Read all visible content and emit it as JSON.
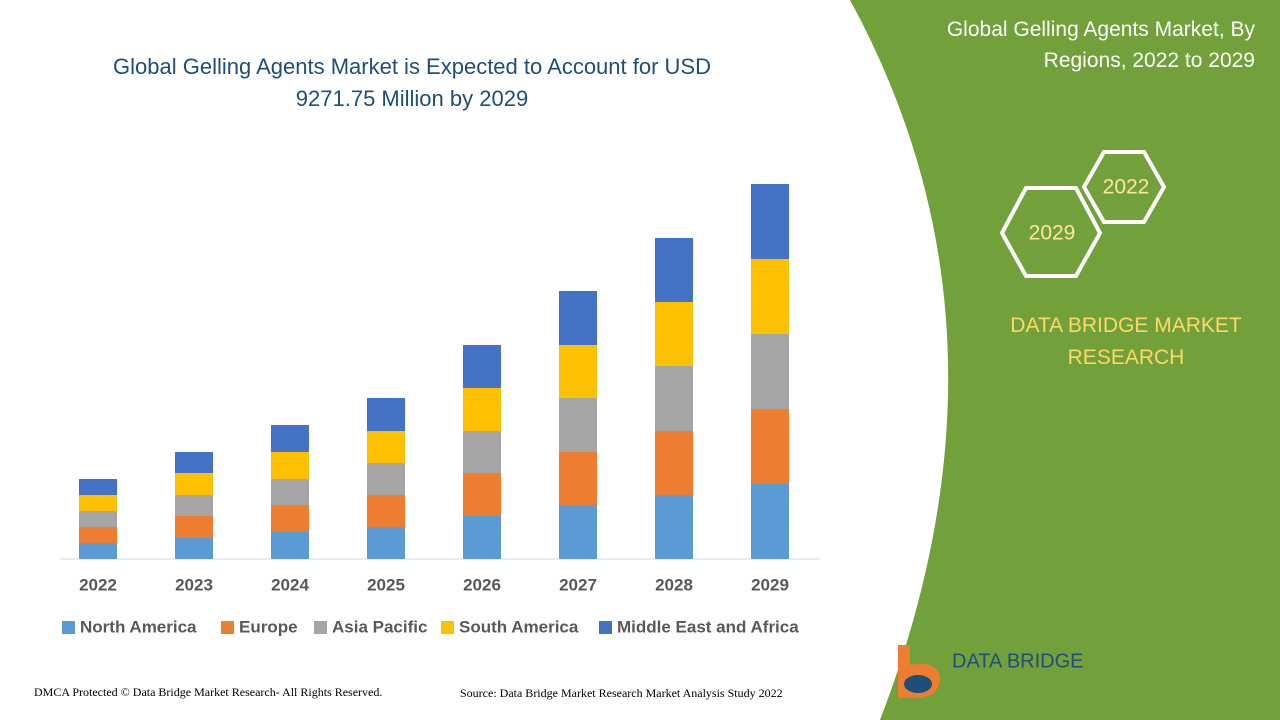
{
  "chart_data": {
    "type": "stacked-bar",
    "title": "Global Gelling Agents Market is Expected to Account for USD 9271.75 Million by 2029",
    "categories": [
      "2022",
      "2023",
      "2024",
      "2025",
      "2026",
      "2027",
      "2028",
      "2029"
    ],
    "series": [
      {
        "name": "North America",
        "color": "#5b9bd5",
        "values": [
          16,
          21,
          27,
          32,
          43,
          54,
          64,
          75
        ]
      },
      {
        "name": "Europe",
        "color": "#ed7d31",
        "values": [
          16,
          22,
          27,
          32,
          43,
          53,
          64,
          75
        ]
      },
      {
        "name": "Asia Pacific",
        "color": "#a5a5a5",
        "values": [
          16,
          21,
          26,
          32,
          42,
          54,
          65,
          75
        ]
      },
      {
        "name": "South America",
        "color": "#ffc000",
        "values": [
          16,
          22,
          27,
          32,
          43,
          53,
          64,
          75
        ]
      },
      {
        "name": "Middle East and Africa",
        "color": "#4472c4",
        "values": [
          16,
          21,
          27,
          33,
          43,
          54,
          64,
          75
        ]
      }
    ]
  },
  "panel": {
    "title": "Global Gelling Agents Market, By Regions, 2022 to 2029",
    "hex_start": "2022",
    "hex_end": "2029",
    "brand": "DATA BRIDGE MARKET RESEARCH"
  },
  "logo": "DATA BRIDGE",
  "footer": {
    "left": "DMCA Protected © Data Bridge Market Research- All Rights Reserved.",
    "right": "Source: Data Bridge Market Research Market Analysis Study 2022"
  }
}
